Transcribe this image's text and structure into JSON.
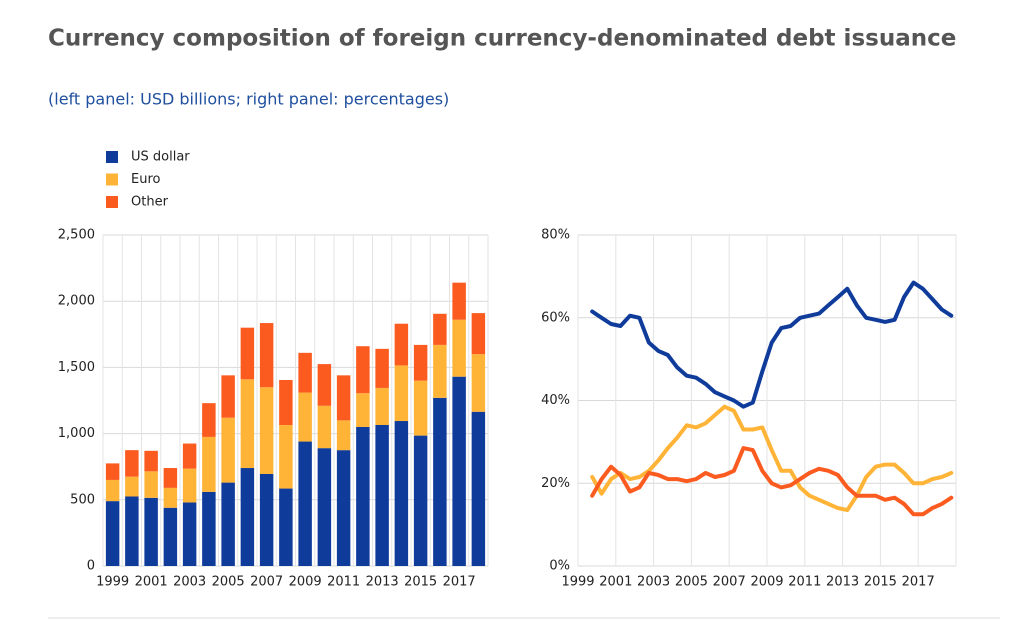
{
  "title": "Currency composition of foreign currency-denominated debt issuance",
  "subtitle": "(left panel: USD billions; right panel: percentages)",
  "chart_data": [
    {
      "type": "bar",
      "stacked": true,
      "grid": true,
      "legend": "top-left",
      "categories": [
        "1999",
        null,
        "2001",
        null,
        "2003",
        null,
        "2005",
        null,
        "2007",
        null,
        "2009",
        null,
        "2011",
        null,
        "2013",
        null,
        "2015",
        null,
        "2017",
        null
      ],
      "series": [
        {
          "name": "US dollar",
          "color": "#0f3c9b",
          "values": [
            490,
            525,
            515,
            440,
            480,
            560,
            630,
            740,
            695,
            585,
            940,
            890,
            875,
            1050,
            1065,
            1095,
            985,
            1270,
            1430,
            1165
          ]
        },
        {
          "name": "Euro",
          "color": "#ffb438",
          "values": [
            160,
            150,
            200,
            150,
            255,
            415,
            490,
            670,
            655,
            480,
            370,
            320,
            225,
            255,
            280,
            420,
            415,
            400,
            430,
            435
          ]
        },
        {
          "name": "Other",
          "color": "#fc5b20",
          "values": [
            125,
            200,
            155,
            150,
            190,
            255,
            320,
            390,
            485,
            340,
            300,
            315,
            340,
            355,
            295,
            315,
            270,
            235,
            280,
            310
          ]
        }
      ],
      "ylim": [
        0,
        2500
      ],
      "yticks": [
        0,
        500,
        {
          "value": 1000,
          "label": "1,000"
        },
        {
          "value": 1500,
          "label": "1,500"
        },
        {
          "value": 2000,
          "label": "2,000"
        },
        {
          "value": 2500,
          "label": "2,500"
        }
      ]
    },
    {
      "type": "line",
      "grid": true,
      "x": [
        1999.75,
        2000.25,
        2000.75,
        2001.25,
        2001.75,
        2002.25,
        2002.75,
        2003.25,
        2003.75,
        2004.25,
        2004.75,
        2005.25,
        2005.75,
        2006.25,
        2006.75,
        2007.25,
        2007.75,
        2008.25,
        2008.75,
        2009.25,
        2009.75,
        2010.25,
        2010.75,
        2011.25,
        2011.75,
        2012.25,
        2012.75,
        2013.25,
        2013.75,
        2014.25,
        2014.75,
        2015.25,
        2015.75,
        2016.25,
        2016.75,
        2017.25,
        2017.75,
        2018.25,
        2018.75
      ],
      "series": [
        {
          "name": "US dollar",
          "color": "#0f3c9b",
          "values": [
            61.5,
            60,
            58.5,
            58,
            60.5,
            60,
            54,
            52,
            51,
            48,
            46,
            45.5,
            44,
            42,
            41,
            40,
            38.5,
            39.5,
            47,
            54,
            57.5,
            58,
            60,
            60.5,
            61,
            63,
            65,
            67,
            63,
            60,
            59.5,
            59,
            59.5,
            65,
            68.5,
            67,
            64.5,
            62,
            60.5
          ]
        },
        {
          "name": "Euro",
          "color": "#ffb438",
          "values": [
            21.5,
            17.5,
            21,
            22.5,
            21,
            21.5,
            23,
            25.5,
            28.5,
            31,
            34,
            33.5,
            34.5,
            36.5,
            38.5,
            37.5,
            33,
            33,
            33.5,
            28,
            23,
            23,
            19,
            17,
            16,
            15,
            14,
            13.5,
            17,
            21.5,
            24,
            24.5,
            24.5,
            22.5,
            20,
            20,
            21,
            21.5,
            22.5
          ]
        },
        {
          "name": "Other",
          "color": "#fc5b20",
          "values": [
            17,
            21,
            24,
            22,
            18,
            19,
            22.5,
            22,
            21,
            21,
            20.5,
            21,
            22.5,
            21.5,
            22,
            23,
            28.5,
            28,
            23,
            20,
            19,
            19.5,
            21,
            22.5,
            23.5,
            23,
            22,
            19,
            17,
            17,
            17,
            16,
            16.5,
            15,
            12.5,
            12.5,
            14,
            15,
            16.5
          ]
        }
      ],
      "xlim": [
        1999,
        2019
      ],
      "xticks": [
        1999,
        2001,
        2003,
        2005,
        2007,
        2009,
        2011,
        2013,
        2015,
        2017
      ],
      "ylim": [
        0,
        80
      ],
      "yticks": [
        {
          "value": 0,
          "label": "0%"
        },
        {
          "value": 20,
          "label": "20%"
        },
        {
          "value": 40,
          "label": "40%"
        },
        {
          "value": 60,
          "label": "60%"
        },
        {
          "value": 80,
          "label": "80%"
        }
      ]
    }
  ]
}
